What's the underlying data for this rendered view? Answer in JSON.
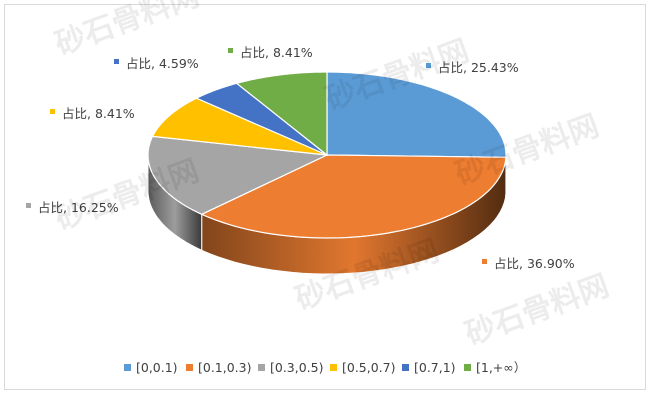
{
  "chart_data": {
    "type": "pie",
    "style": "3d",
    "categories": [
      "[0,0.1)",
      "[0.1,0.3)",
      "[0.3,0.5)",
      "[0.5,0.7)",
      "[0.7,1)",
      "[1,+∞）"
    ],
    "values": [
      25.43,
      36.9,
      16.25,
      8.41,
      4.59,
      8.41
    ],
    "data_labels": [
      "占比, 25.43%",
      "占比, 36.90%",
      "占比, 16.25%",
      "占比, 8.41%",
      "占比, 4.59%",
      "占比, 8.41%"
    ],
    "colors": [
      "#5b9bd5",
      "#ed7d31",
      "#a5a5a5",
      "#ffc000",
      "#4472c4",
      "#70ad47"
    ],
    "legend_placement": "bottom",
    "start_angle": "12 o'clock, clockwise"
  },
  "watermark": "砂石骨料网"
}
